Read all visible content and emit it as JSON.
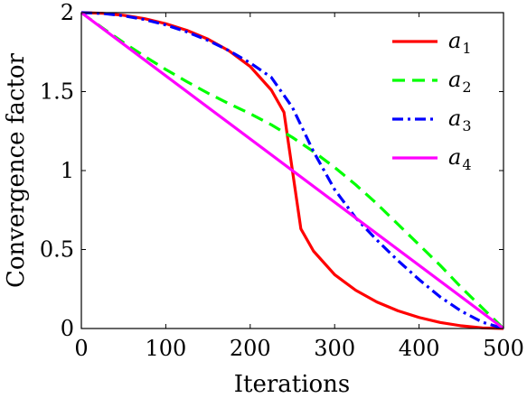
{
  "chart_data": {
    "type": "line",
    "title": "",
    "xlabel": "Iterations",
    "ylabel": "Convergence factor",
    "xlim": [
      0,
      500
    ],
    "ylim": [
      0,
      2
    ],
    "xticks": [
      0,
      100,
      200,
      300,
      400,
      500
    ],
    "yticks": [
      0,
      0.5,
      1,
      1.5,
      2
    ],
    "ytick_labels": [
      "0",
      "0.5",
      "1",
      "1.5",
      "2"
    ],
    "grid": false,
    "legend_position": "top-right",
    "series": [
      {
        "name": "a",
        "subscript": "1",
        "color": "#ff0000",
        "dash": "solid",
        "x": [
          0,
          25,
          50,
          75,
          100,
          125,
          150,
          175,
          200,
          225,
          240,
          250,
          260,
          275,
          300,
          325,
          350,
          375,
          400,
          425,
          450,
          475,
          500
        ],
        "y": [
          2.0,
          1.996,
          1.983,
          1.962,
          1.93,
          1.888,
          1.832,
          1.758,
          1.659,
          1.51,
          1.369,
          1.0,
          0.631,
          0.49,
          0.341,
          0.242,
          0.168,
          0.112,
          0.07,
          0.038,
          0.017,
          0.004,
          0.0
        ]
      },
      {
        "name": "a",
        "subscript": "2",
        "color": "#00ff00",
        "dash": "dashed",
        "x": [
          0,
          25,
          50,
          75,
          100,
          125,
          150,
          175,
          200,
          225,
          250,
          275,
          300,
          325,
          350,
          375,
          400,
          425,
          450,
          475,
          500
        ],
        "y": [
          2.0,
          1.903,
          1.81,
          1.723,
          1.64,
          1.563,
          1.49,
          1.423,
          1.36,
          1.29,
          1.21,
          1.12,
          1.02,
          0.91,
          0.79,
          0.66,
          0.53,
          0.4,
          0.26,
          0.13,
          0.0
        ]
      },
      {
        "name": "a",
        "subscript": "3",
        "color": "#0000ff",
        "dash": "dashdot",
        "x": [
          0,
          25,
          50,
          75,
          100,
          125,
          150,
          175,
          200,
          225,
          250,
          275,
          300,
          325,
          350,
          375,
          400,
          425,
          450,
          475,
          500
        ],
        "y": [
          2.0,
          1.995,
          1.98,
          1.956,
          1.922,
          1.878,
          1.824,
          1.759,
          1.682,
          1.59,
          1.4,
          1.12,
          0.88,
          0.7,
          0.56,
          0.43,
          0.31,
          0.2,
          0.11,
          0.04,
          0.0
        ]
      },
      {
        "name": "a",
        "subscript": "4",
        "color": "#ff00ff",
        "dash": "solid",
        "x": [
          0,
          500
        ],
        "y": [
          2.0,
          0.0
        ]
      }
    ]
  }
}
